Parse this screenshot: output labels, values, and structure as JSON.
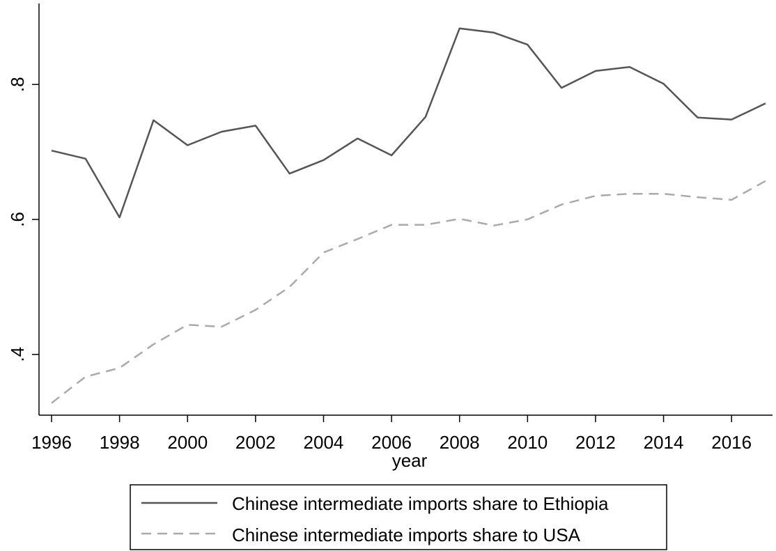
{
  "chart_data": {
    "type": "line",
    "title": "",
    "xlabel": "year",
    "ylabel": "",
    "x": [
      1996,
      1997,
      1998,
      1999,
      2000,
      2001,
      2002,
      2003,
      2004,
      2005,
      2006,
      2007,
      2008,
      2009,
      2010,
      2011,
      2012,
      2013,
      2014,
      2015,
      2016,
      2017
    ],
    "xlim": [
      1996,
      2017
    ],
    "ylim": [
      0.31,
      0.92
    ],
    "x_ticks": [
      "1996",
      "1998",
      "2000",
      "2002",
      "2004",
      "2006",
      "2008",
      "2010",
      "2012",
      "2014",
      "2016"
    ],
    "x_tick_values": [
      1996,
      1998,
      2000,
      2002,
      2004,
      2006,
      2008,
      2010,
      2012,
      2014,
      2016
    ],
    "y_ticks": [
      ".4",
      ".6",
      ".8"
    ],
    "y_tick_values": [
      0.4,
      0.6,
      0.8
    ],
    "grid": false,
    "legend_position": "bottom",
    "series": [
      {
        "name": "Chinese intermediate imports share to Ethiopia",
        "color": "#555555",
        "style": "solid",
        "values": [
          0.702,
          0.69,
          0.603,
          0.747,
          0.71,
          0.73,
          0.739,
          0.668,
          0.688,
          0.72,
          0.695,
          0.752,
          0.883,
          0.877,
          0.859,
          0.795,
          0.82,
          0.826,
          0.801,
          0.751,
          0.748,
          0.772
        ]
      },
      {
        "name": "Chinese intermediate imports share to USA",
        "color": "#aaaaaa",
        "style": "dashed",
        "values": [
          0.328,
          0.367,
          0.38,
          0.415,
          0.444,
          0.441,
          0.466,
          0.5,
          0.551,
          0.571,
          0.592,
          0.592,
          0.601,
          0.591,
          0.6,
          0.622,
          0.635,
          0.638,
          0.638,
          0.633,
          0.629,
          0.657
        ]
      }
    ]
  }
}
